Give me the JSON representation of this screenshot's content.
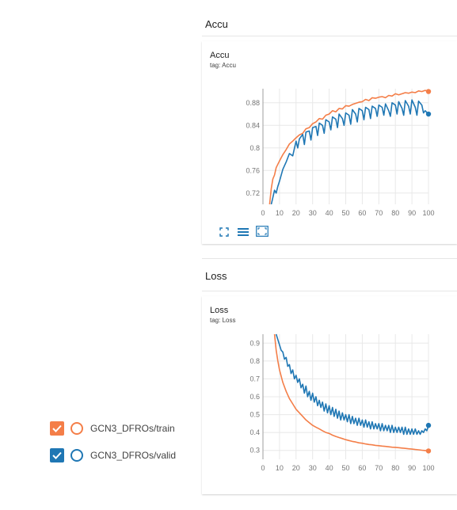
{
  "accu_section": {
    "title": "Accu"
  },
  "accu_card": {
    "title": "Accu",
    "tag": "tag: Accu"
  },
  "loss_section": {
    "title": "Loss"
  },
  "loss_card": {
    "title": "Loss",
    "tag": "tag: Loss"
  },
  "toolbar": {
    "icons": [
      "fit-domain-icon",
      "toggle-log-icon",
      "expand-icon"
    ]
  },
  "legend": {
    "items": [
      {
        "label": "GCN3_DFROs/train",
        "color": "#f47e48",
        "checked": true
      },
      {
        "label": "GCN3_DFROs/valid",
        "color": "#1f77b4",
        "checked": true
      }
    ]
  },
  "chart_data": [
    {
      "type": "line",
      "title": "Accu",
      "xlim": [
        0,
        100
      ],
      "ylim": [
        0.7,
        0.905
      ],
      "x_ticks": [
        0,
        10,
        20,
        30,
        40,
        50,
        60,
        70,
        80,
        90,
        100
      ],
      "y_ticks": [
        0.72,
        0.76,
        0.8,
        0.84,
        0.88
      ],
      "y_tick_labels": [
        "0.72",
        "0.76",
        "0.8",
        "0.84",
        "0.88"
      ],
      "series": [
        {
          "color": "#f47e48",
          "x": [
            4,
            5,
            6,
            7,
            8,
            10,
            12,
            14,
            16,
            18,
            20,
            22,
            24,
            26,
            28,
            30,
            32,
            34,
            36,
            38,
            40,
            42,
            44,
            46,
            48,
            50,
            52,
            54,
            56,
            58,
            60,
            62,
            64,
            66,
            68,
            70,
            72,
            74,
            76,
            78,
            80,
            82,
            84,
            86,
            88,
            90,
            92,
            94,
            96,
            98,
            100
          ],
          "y": [
            0.7,
            0.728,
            0.745,
            0.752,
            0.765,
            0.777,
            0.788,
            0.797,
            0.807,
            0.812,
            0.818,
            0.823,
            0.826,
            0.834,
            0.836,
            0.843,
            0.846,
            0.852,
            0.851,
            0.858,
            0.86,
            0.866,
            0.864,
            0.87,
            0.869,
            0.875,
            0.874,
            0.877,
            0.879,
            0.881,
            0.882,
            0.886,
            0.884,
            0.889,
            0.888,
            0.89,
            0.891,
            0.889,
            0.893,
            0.892,
            0.896,
            0.894,
            0.896,
            0.898,
            0.897,
            0.899,
            0.898,
            0.901,
            0.9,
            0.902,
            0.9
          ]
        },
        {
          "color": "#1f77b4",
          "x": [
            5,
            6,
            7,
            8,
            9,
            10,
            12,
            14,
            16,
            18,
            20,
            21,
            22,
            24,
            25,
            26,
            28,
            29,
            30,
            32,
            33,
            34,
            36,
            37,
            38,
            40,
            41,
            42,
            44,
            45,
            46,
            48,
            49,
            50,
            52,
            53,
            54,
            56,
            57,
            58,
            60,
            61,
            62,
            64,
            65,
            66,
            68,
            69,
            70,
            72,
            73,
            74,
            76,
            77,
            78,
            80,
            81,
            82,
            84,
            85,
            86,
            88,
            89,
            90,
            92,
            93,
            94,
            96,
            97,
            98,
            100
          ],
          "y": [
            0.7,
            0.712,
            0.725,
            0.72,
            0.732,
            0.741,
            0.762,
            0.775,
            0.79,
            0.786,
            0.812,
            0.8,
            0.816,
            0.824,
            0.806,
            0.828,
            0.83,
            0.814,
            0.836,
            0.838,
            0.822,
            0.844,
            0.84,
            0.826,
            0.85,
            0.846,
            0.832,
            0.855,
            0.851,
            0.836,
            0.86,
            0.852,
            0.84,
            0.862,
            0.858,
            0.842,
            0.868,
            0.86,
            0.846,
            0.87,
            0.866,
            0.85,
            0.872,
            0.868,
            0.852,
            0.874,
            0.87,
            0.856,
            0.876,
            0.872,
            0.858,
            0.878,
            0.866,
            0.856,
            0.88,
            0.876,
            0.86,
            0.882,
            0.87,
            0.858,
            0.884,
            0.874,
            0.86,
            0.885,
            0.872,
            0.858,
            0.883,
            0.876,
            0.862,
            0.866,
            0.86
          ]
        }
      ]
    },
    {
      "type": "line",
      "title": "Loss",
      "xlim": [
        0,
        100
      ],
      "ylim": [
        0.25,
        0.95
      ],
      "x_ticks": [
        0,
        10,
        20,
        30,
        40,
        50,
        60,
        70,
        80,
        90,
        100
      ],
      "y_ticks": [
        0.3,
        0.4,
        0.5,
        0.6,
        0.7,
        0.8,
        0.9
      ],
      "y_tick_labels": [
        "0.3",
        "0.4",
        "0.5",
        "0.6",
        "0.7",
        "0.8",
        "0.9"
      ],
      "series": [
        {
          "color": "#f47e48",
          "x": [
            7,
            8,
            9,
            10,
            12,
            14,
            16,
            18,
            20,
            22,
            24,
            26,
            28,
            30,
            32,
            34,
            36,
            38,
            40,
            42,
            44,
            46,
            48,
            50,
            52,
            54,
            56,
            58,
            60,
            62,
            64,
            66,
            68,
            70,
            72,
            74,
            76,
            78,
            80,
            82,
            84,
            86,
            88,
            90,
            92,
            94,
            96,
            98,
            100
          ],
          "y": [
            0.95,
            0.86,
            0.8,
            0.75,
            0.68,
            0.63,
            0.59,
            0.56,
            0.53,
            0.51,
            0.49,
            0.47,
            0.455,
            0.44,
            0.43,
            0.42,
            0.41,
            0.4,
            0.395,
            0.385,
            0.378,
            0.372,
            0.366,
            0.36,
            0.355,
            0.35,
            0.347,
            0.342,
            0.34,
            0.336,
            0.333,
            0.331,
            0.328,
            0.326,
            0.324,
            0.322,
            0.32,
            0.318,
            0.317,
            0.315,
            0.313,
            0.311,
            0.309,
            0.307,
            0.305,
            0.303,
            0.301,
            0.299,
            0.297
          ]
        },
        {
          "color": "#1f77b4",
          "x": [
            8,
            9,
            10,
            11,
            12,
            13,
            14,
            15,
            16,
            17,
            18,
            19,
            20,
            21,
            22,
            23,
            24,
            25,
            26,
            27,
            28,
            29,
            30,
            31,
            32,
            33,
            34,
            35,
            36,
            37,
            38,
            39,
            40,
            41,
            42,
            43,
            44,
            45,
            46,
            47,
            48,
            49,
            50,
            51,
            52,
            53,
            54,
            55,
            56,
            57,
            58,
            59,
            60,
            61,
            62,
            63,
            64,
            65,
            66,
            67,
            68,
            69,
            70,
            71,
            72,
            73,
            74,
            75,
            76,
            77,
            78,
            79,
            80,
            81,
            82,
            83,
            84,
            85,
            86,
            87,
            88,
            89,
            90,
            91,
            92,
            93,
            94,
            95,
            96,
            97,
            98,
            99,
            100
          ],
          "y": [
            0.95,
            0.92,
            0.89,
            0.86,
            0.85,
            0.81,
            0.82,
            0.77,
            0.78,
            0.73,
            0.75,
            0.7,
            0.72,
            0.68,
            0.7,
            0.65,
            0.67,
            0.62,
            0.66,
            0.6,
            0.63,
            0.58,
            0.62,
            0.57,
            0.6,
            0.55,
            0.58,
            0.54,
            0.57,
            0.52,
            0.56,
            0.51,
            0.55,
            0.5,
            0.54,
            0.49,
            0.53,
            0.48,
            0.52,
            0.47,
            0.51,
            0.47,
            0.5,
            0.46,
            0.5,
            0.45,
            0.49,
            0.45,
            0.48,
            0.44,
            0.48,
            0.44,
            0.47,
            0.43,
            0.47,
            0.43,
            0.46,
            0.42,
            0.46,
            0.42,
            0.45,
            0.42,
            0.45,
            0.41,
            0.45,
            0.41,
            0.44,
            0.41,
            0.44,
            0.4,
            0.44,
            0.4,
            0.43,
            0.4,
            0.43,
            0.4,
            0.43,
            0.39,
            0.43,
            0.39,
            0.42,
            0.39,
            0.42,
            0.39,
            0.42,
            0.39,
            0.41,
            0.39,
            0.41,
            0.4,
            0.42,
            0.41,
            0.44
          ]
        }
      ]
    }
  ]
}
